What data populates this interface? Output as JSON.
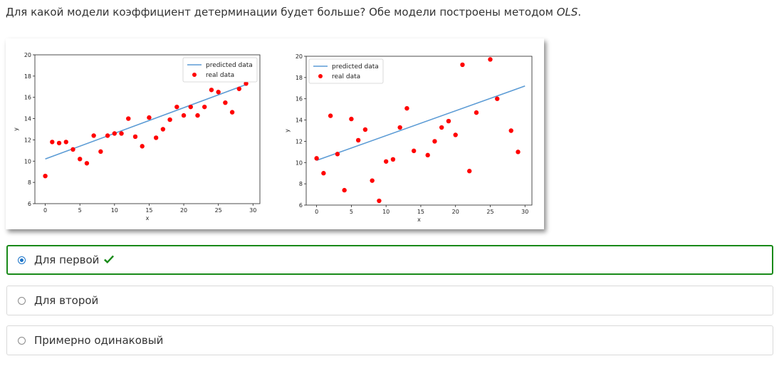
{
  "question": {
    "text": "Для какой модели коэффициент детерминации будет больше? Обе модели построены методом ",
    "method": "OLS",
    "suffix": "."
  },
  "colors": {
    "correct": "#198a19",
    "line": "#5b9bd5",
    "points": "#ff0000",
    "radio": "#1a73c8"
  },
  "options": [
    {
      "label": "Для первой",
      "selected": true,
      "correct_icon": "checkmark-icon"
    },
    {
      "label": "Для второй",
      "selected": false
    },
    {
      "label": "Примерно одинаковый",
      "selected": false
    }
  ],
  "chart_data": [
    {
      "type": "scatter",
      "xlabel": "x",
      "ylabel": "y",
      "xlim": [
        -1.5,
        31
      ],
      "ylim": [
        6,
        20
      ],
      "xticks": [
        0,
        5,
        10,
        15,
        20,
        25,
        30
      ],
      "yticks": [
        6,
        8,
        10,
        12,
        14,
        16,
        18,
        20
      ],
      "legend": "top-right",
      "series": [
        {
          "name": "predicted data",
          "kind": "line",
          "x": [
            0,
            29
          ],
          "y": [
            10.2,
            17.2
          ]
        },
        {
          "name": "real data",
          "kind": "points",
          "x": [
            0,
            1,
            2,
            3,
            4,
            5,
            6,
            7,
            8,
            9,
            10,
            11,
            12,
            13,
            14,
            15,
            16,
            17,
            18,
            19,
            20,
            21,
            22,
            23,
            24,
            25,
            26,
            27,
            28,
            29
          ],
          "y": [
            8.6,
            11.8,
            11.7,
            11.8,
            11.1,
            10.2,
            9.8,
            12.4,
            10.9,
            12.4,
            12.6,
            12.6,
            14.0,
            12.3,
            11.4,
            14.1,
            12.2,
            13.0,
            13.9,
            15.1,
            14.3,
            15.1,
            14.3,
            15.1,
            16.7,
            16.5,
            15.5,
            14.6,
            16.8,
            17.3
          ]
        }
      ]
    },
    {
      "type": "scatter",
      "xlabel": "x",
      "ylabel": "y",
      "xlim": [
        -1.5,
        31
      ],
      "ylim": [
        6,
        20
      ],
      "xticks": [
        0,
        5,
        10,
        15,
        20,
        25,
        30
      ],
      "yticks": [
        6,
        8,
        10,
        12,
        14,
        16,
        18,
        20
      ],
      "legend": "top-left",
      "series": [
        {
          "name": "predicted data",
          "kind": "line",
          "x": [
            0,
            30
          ],
          "y": [
            10.2,
            17.2
          ]
        },
        {
          "name": "real data",
          "kind": "points",
          "x": [
            0,
            1,
            2,
            3,
            4,
            5,
            6,
            7,
            8,
            9,
            10,
            11,
            12,
            13,
            14,
            16,
            17,
            18,
            19,
            20,
            21,
            22,
            23,
            25,
            26,
            28,
            29
          ],
          "y": [
            10.4,
            9.0,
            14.4,
            10.8,
            7.4,
            14.1,
            12.1,
            13.1,
            8.3,
            6.4,
            10.1,
            10.3,
            13.3,
            15.1,
            11.1,
            10.7,
            12.0,
            13.3,
            13.9,
            12.6,
            19.2,
            9.2,
            14.7,
            19.7,
            16.0,
            13.0,
            11.0
          ]
        }
      ]
    }
  ]
}
